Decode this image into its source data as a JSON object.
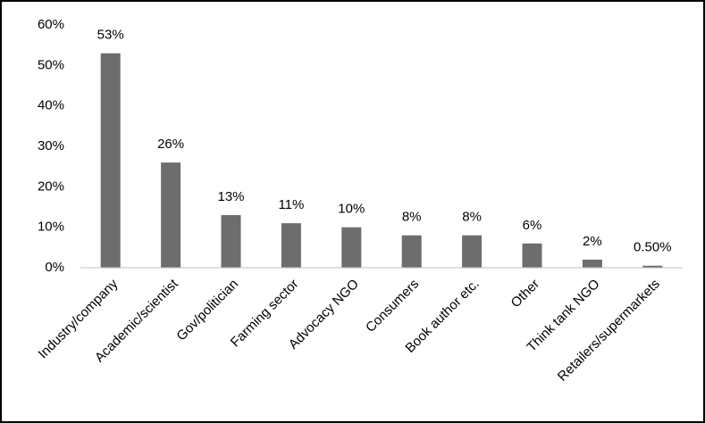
{
  "chart_data": {
    "type": "bar",
    "categories": [
      "Industry/company",
      "Academic/scientist",
      "Gov/politician",
      "Farming sector",
      "Advocacy NGO",
      "Consumers",
      "Book author etc.",
      "Other",
      "Think tank NGO",
      "Retailers/supermarkets"
    ],
    "values": [
      53,
      26,
      13,
      11,
      10,
      8,
      8,
      6,
      2,
      0.5
    ],
    "value_labels": [
      "53%",
      "26%",
      "13%",
      "11%",
      "10%",
      "8%",
      "8%",
      "6%",
      "2%",
      "0.50%"
    ],
    "color": "#6d6d6d",
    "ylim": [
      0,
      60
    ],
    "yticks": [
      {
        "value": 0,
        "label": "0%"
      },
      {
        "value": 10,
        "label": "10%"
      },
      {
        "value": 20,
        "label": "20%"
      },
      {
        "value": 30,
        "label": "30%"
      },
      {
        "value": 40,
        "label": "40%"
      },
      {
        "value": 50,
        "label": "50%"
      },
      {
        "value": 60,
        "label": "60%"
      }
    ],
    "grid": false
  }
}
